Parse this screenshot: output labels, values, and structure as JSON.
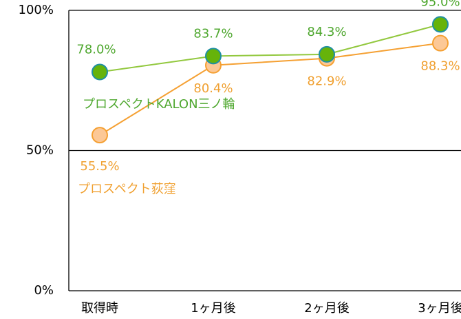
{
  "chart_data": {
    "type": "line",
    "categories": [
      "取得時",
      "1ヶ月後",
      "2ヶ月後",
      "3ヶ月後"
    ],
    "series": [
      {
        "name": "プロスペクトKALON三ノ輪",
        "color": "#92c83e",
        "marker_color": "#66b30a",
        "marker_edge": "#1f8fa3",
        "text_color": "#4ea72e",
        "values": [
          78.0,
          83.7,
          84.3,
          95.0
        ],
        "value_labels": [
          "78.0%",
          "83.7%",
          "84.3%",
          "95.0%"
        ]
      },
      {
        "name": "プロスペクト荻窪",
        "color": "#f5a032",
        "marker_color": "#fcc896",
        "marker_edge": "#f5a032",
        "text_color": "#f0a030",
        "values": [
          55.5,
          80.4,
          82.9,
          88.3
        ],
        "value_labels": [
          "55.5%",
          "80.4%",
          "82.9%",
          "88.3%"
        ]
      }
    ],
    "ylim": [
      0,
      100
    ],
    "yticks": [
      {
        "value": 0,
        "label": "0%"
      },
      {
        "value": 50,
        "label": "50%"
      },
      {
        "value": 100,
        "label": "100%"
      }
    ],
    "grid": true
  }
}
